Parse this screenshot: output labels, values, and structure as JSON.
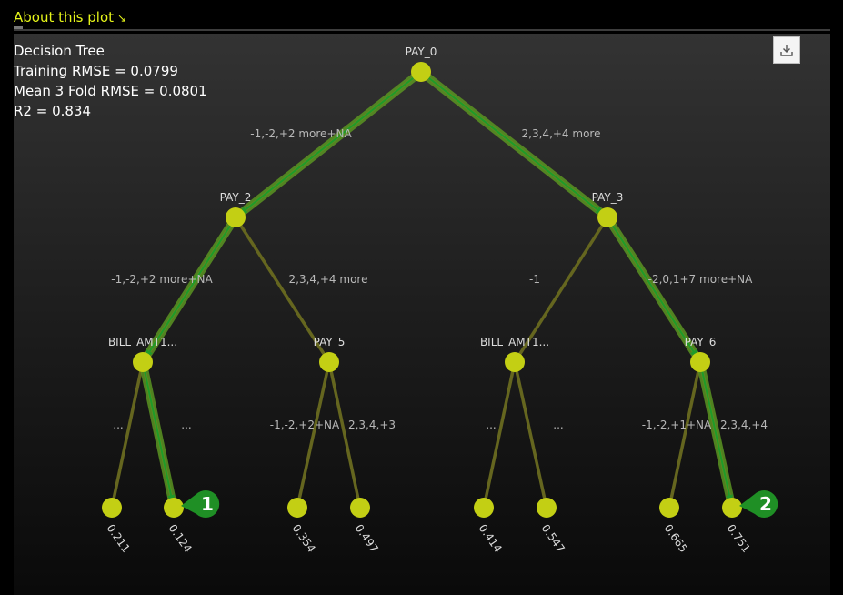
{
  "header": {
    "about_label": "About this plot",
    "about_icon": "arrow-down-right-icon"
  },
  "stats": {
    "title": "Decision Tree",
    "training_rmse": "Training RMSE = 0.0799",
    "cv_rmse": "Mean 3 Fold RMSE = 0.0801",
    "r2": "R2 = 0.834"
  },
  "toolbar": {
    "download_icon": "download-icon"
  },
  "colors": {
    "node": "#c3cf14",
    "edge": "#65661f",
    "path": "#5a9422",
    "path_arrow": "#1f9a2a",
    "marker": "#1f8f25",
    "edge_label": "#b8b8b8",
    "node_label": "#dddddd"
  },
  "tree": {
    "nodes": [
      {
        "id": "n0",
        "label": "PAY_0"
      },
      {
        "id": "n1",
        "label": "PAY_2"
      },
      {
        "id": "n2",
        "label": "PAY_3"
      },
      {
        "id": "n3",
        "label": "BILL_AMT1..."
      },
      {
        "id": "n4",
        "label": "PAY_5"
      },
      {
        "id": "n5",
        "label": "BILL_AMT1..."
      },
      {
        "id": "n6",
        "label": "PAY_6"
      },
      {
        "id": "l0",
        "label": "0.211"
      },
      {
        "id": "l1",
        "label": "0.124"
      },
      {
        "id": "l2",
        "label": "0.354"
      },
      {
        "id": "l3",
        "label": "0.497"
      },
      {
        "id": "l4",
        "label": "0.414"
      },
      {
        "id": "l5",
        "label": "0.547"
      },
      {
        "id": "l6",
        "label": "0.665"
      },
      {
        "id": "l7",
        "label": "0.751"
      }
    ],
    "edges": [
      {
        "from": "n0",
        "to": "n1",
        "label": "-1,-2,+2 more+NA"
      },
      {
        "from": "n0",
        "to": "n2",
        "label": "2,3,4,+4 more"
      },
      {
        "from": "n1",
        "to": "n3",
        "label": "-1,-2,+2 more+NA"
      },
      {
        "from": "n1",
        "to": "n4",
        "label": "2,3,4,+4 more"
      },
      {
        "from": "n2",
        "to": "n5",
        "label": "-1"
      },
      {
        "from": "n2",
        "to": "n6",
        "label": "-2,0,1+7 more+NA"
      },
      {
        "from": "n3",
        "to": "l0",
        "label": "..."
      },
      {
        "from": "n3",
        "to": "l1",
        "label": "..."
      },
      {
        "from": "n4",
        "to": "l2",
        "label": "-1,-2,+2+NA"
      },
      {
        "from": "n4",
        "to": "l3",
        "label": "2,3,4,+3"
      },
      {
        "from": "n5",
        "to": "l4",
        "label": "..."
      },
      {
        "from": "n5",
        "to": "l5",
        "label": "..."
      },
      {
        "from": "n6",
        "to": "l6",
        "label": "-1,-2,+1+NA"
      },
      {
        "from": "n6",
        "to": "l7",
        "label": "2,3,4,+4"
      }
    ],
    "paths": [
      {
        "marker": "1",
        "nodes": [
          "n0",
          "n1",
          "n3",
          "l1"
        ]
      },
      {
        "marker": "2",
        "nodes": [
          "n0",
          "n2",
          "n6",
          "l7"
        ]
      }
    ]
  }
}
